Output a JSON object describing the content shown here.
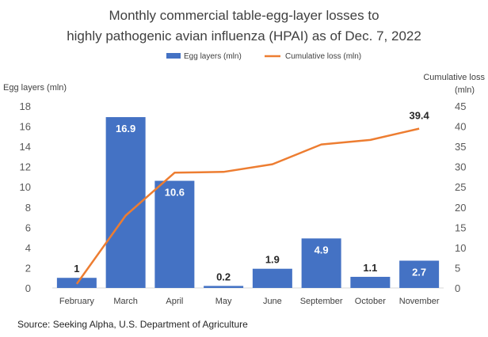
{
  "chart_data": {
    "type": "bar",
    "title_lines": [
      "Monthly commercial table-egg-layer losses to",
      "highly pathogenic avian influenza (HPAI) as of Dec. 7, 2022"
    ],
    "categories": [
      "February",
      "March",
      "April",
      "May",
      "June",
      "September",
      "October",
      "November"
    ],
    "series": [
      {
        "name": "Egg layers (mln)",
        "type": "bar",
        "axis": "left",
        "color": "#4472C4",
        "values": [
          1,
          16.9,
          10.6,
          0.2,
          1.9,
          4.9,
          1.1,
          2.7
        ],
        "data_labels": [
          "1",
          "16.9",
          "10.6",
          "0.2",
          "1.9",
          "4.9",
          "1.1",
          "2.7"
        ]
      },
      {
        "name": "Cumulative loss (mln)",
        "type": "line",
        "axis": "right",
        "color": "#ED7D31",
        "values": [
          1,
          17.9,
          28.5,
          28.7,
          30.6,
          35.5,
          36.6,
          39.4
        ],
        "data_labels": [
          "",
          "",
          "",
          "",
          "",
          "",
          "",
          "39.4"
        ]
      }
    ],
    "ylabel_left": "Egg layers (mln)",
    "ylabel_right": "Cumulative loss (mln)",
    "ylim_left": [
      0,
      18
    ],
    "yticks_left": [
      "0",
      "2",
      "4",
      "6",
      "8",
      "10",
      "12",
      "14",
      "16",
      "18"
    ],
    "ylim_right": [
      0,
      45
    ],
    "yticks_right": [
      "0",
      "5",
      "10",
      "15",
      "20",
      "25",
      "30",
      "35",
      "40",
      "45"
    ],
    "grid": false,
    "legend_position": "top"
  },
  "source_text": "Source: Seeking Alpha, U.S. Department of Agriculture"
}
